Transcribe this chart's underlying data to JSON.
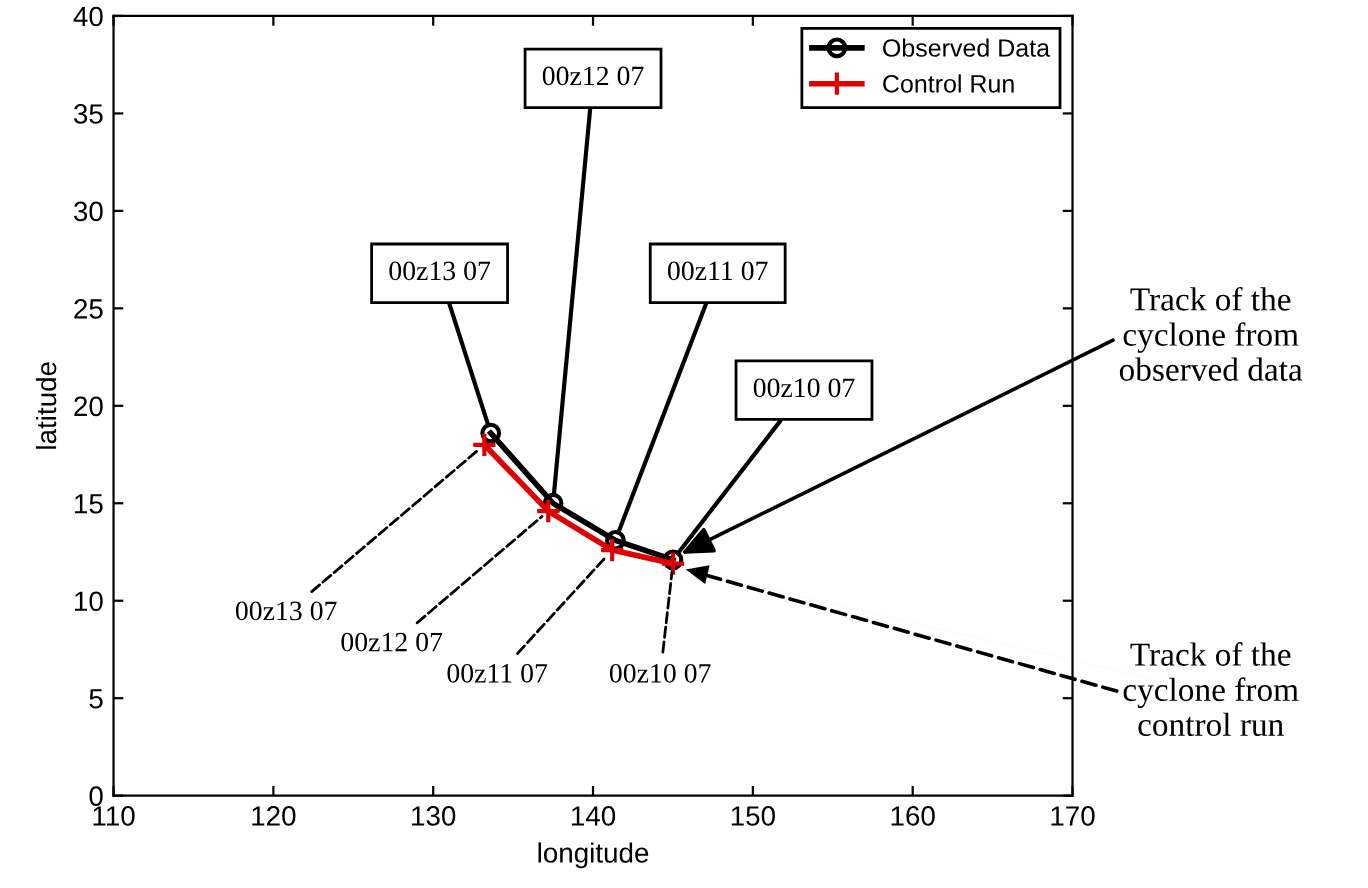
{
  "chart_data": {
    "type": "line",
    "xlabel": "longitude",
    "ylabel": "latitude",
    "xlim": [
      110,
      170
    ],
    "xticks": [
      110,
      120,
      130,
      140,
      150,
      160,
      170
    ],
    "ylim": [
      0,
      40
    ],
    "yticks": [
      0,
      5,
      10,
      15,
      20,
      25,
      30,
      35,
      40
    ],
    "grid": false,
    "legend": "top right",
    "series": [
      {
        "name": "Observed Data",
        "color": "#000000",
        "marker": "circle",
        "x": [
          133.6,
          137.5,
          141.4,
          145.0
        ],
        "values": [
          18.6,
          15.0,
          13.1,
          12.1
        ]
      },
      {
        "name": "Control Run",
        "color": "#e00000",
        "marker": "cross",
        "x": [
          133.2,
          137.2,
          141.2,
          145.0
        ],
        "values": [
          18.0,
          14.6,
          12.6,
          11.9
        ]
      }
    ],
    "annotations": [
      {
        "text": "00z13 07",
        "x": 133.6,
        "y": 18.6
      },
      {
        "text": "00z12 07",
        "x": 137.5,
        "y": 15.0
      },
      {
        "text": "00z11 07",
        "x": 141.4,
        "y": 13.1
      },
      {
        "text": "00z10 07",
        "x": 145.0,
        "y": 12.1
      },
      {
        "text": "00z13 07",
        "x": 133.2,
        "y": 18.0
      },
      {
        "text": "00z12 07",
        "x": 137.2,
        "y": 14.6
      },
      {
        "text": "00z11 07",
        "x": 141.2,
        "y": 12.6
      },
      {
        "text": "00z10 07",
        "x": 145.0,
        "y": 11.9
      },
      {
        "text": "Track of the\ncyclone from\nobserved data",
        "x": 145.5,
        "y": 12.4
      },
      {
        "text": "Track of the\ncyclone from\ncontrol run",
        "x": 145.8,
        "y": 11.6
      }
    ]
  }
}
